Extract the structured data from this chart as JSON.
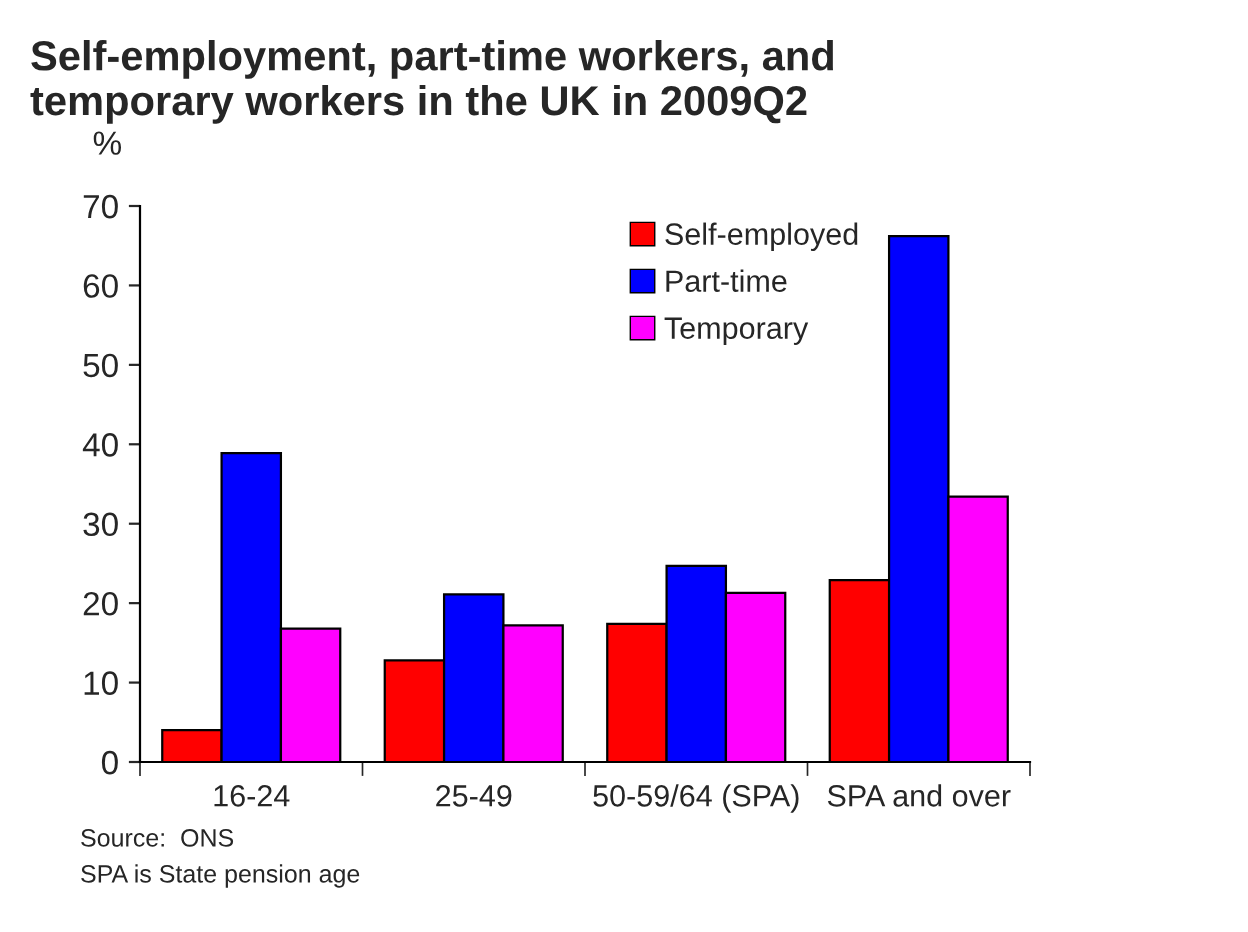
{
  "chart_data": {
    "type": "bar",
    "title": "Self-employment, part-time workers, and\ntemporary workers in the UK in 2009Q2",
    "ylabel": "%",
    "categories": [
      "16-24",
      "25-49",
      "50-59/64 (SPA)",
      "SPA and over"
    ],
    "series": [
      {
        "name": "Self-employed",
        "color": "#ff0000",
        "values": [
          4.0,
          12.8,
          17.4,
          22.9
        ]
      },
      {
        "name": "Part-time",
        "color": "#0000ff",
        "values": [
          38.9,
          21.1,
          24.7,
          66.2
        ]
      },
      {
        "name": "Temporary",
        "color": "#ff00ff",
        "values": [
          16.8,
          17.2,
          21.3,
          33.4
        ]
      }
    ],
    "ylim": [
      0,
      70
    ],
    "yticks": [
      0,
      10,
      20,
      30,
      40,
      50,
      60,
      70
    ],
    "grid": false,
    "legend": "top right",
    "annotations": [
      "Source:  ONS",
      "SPA is State pension age"
    ]
  }
}
